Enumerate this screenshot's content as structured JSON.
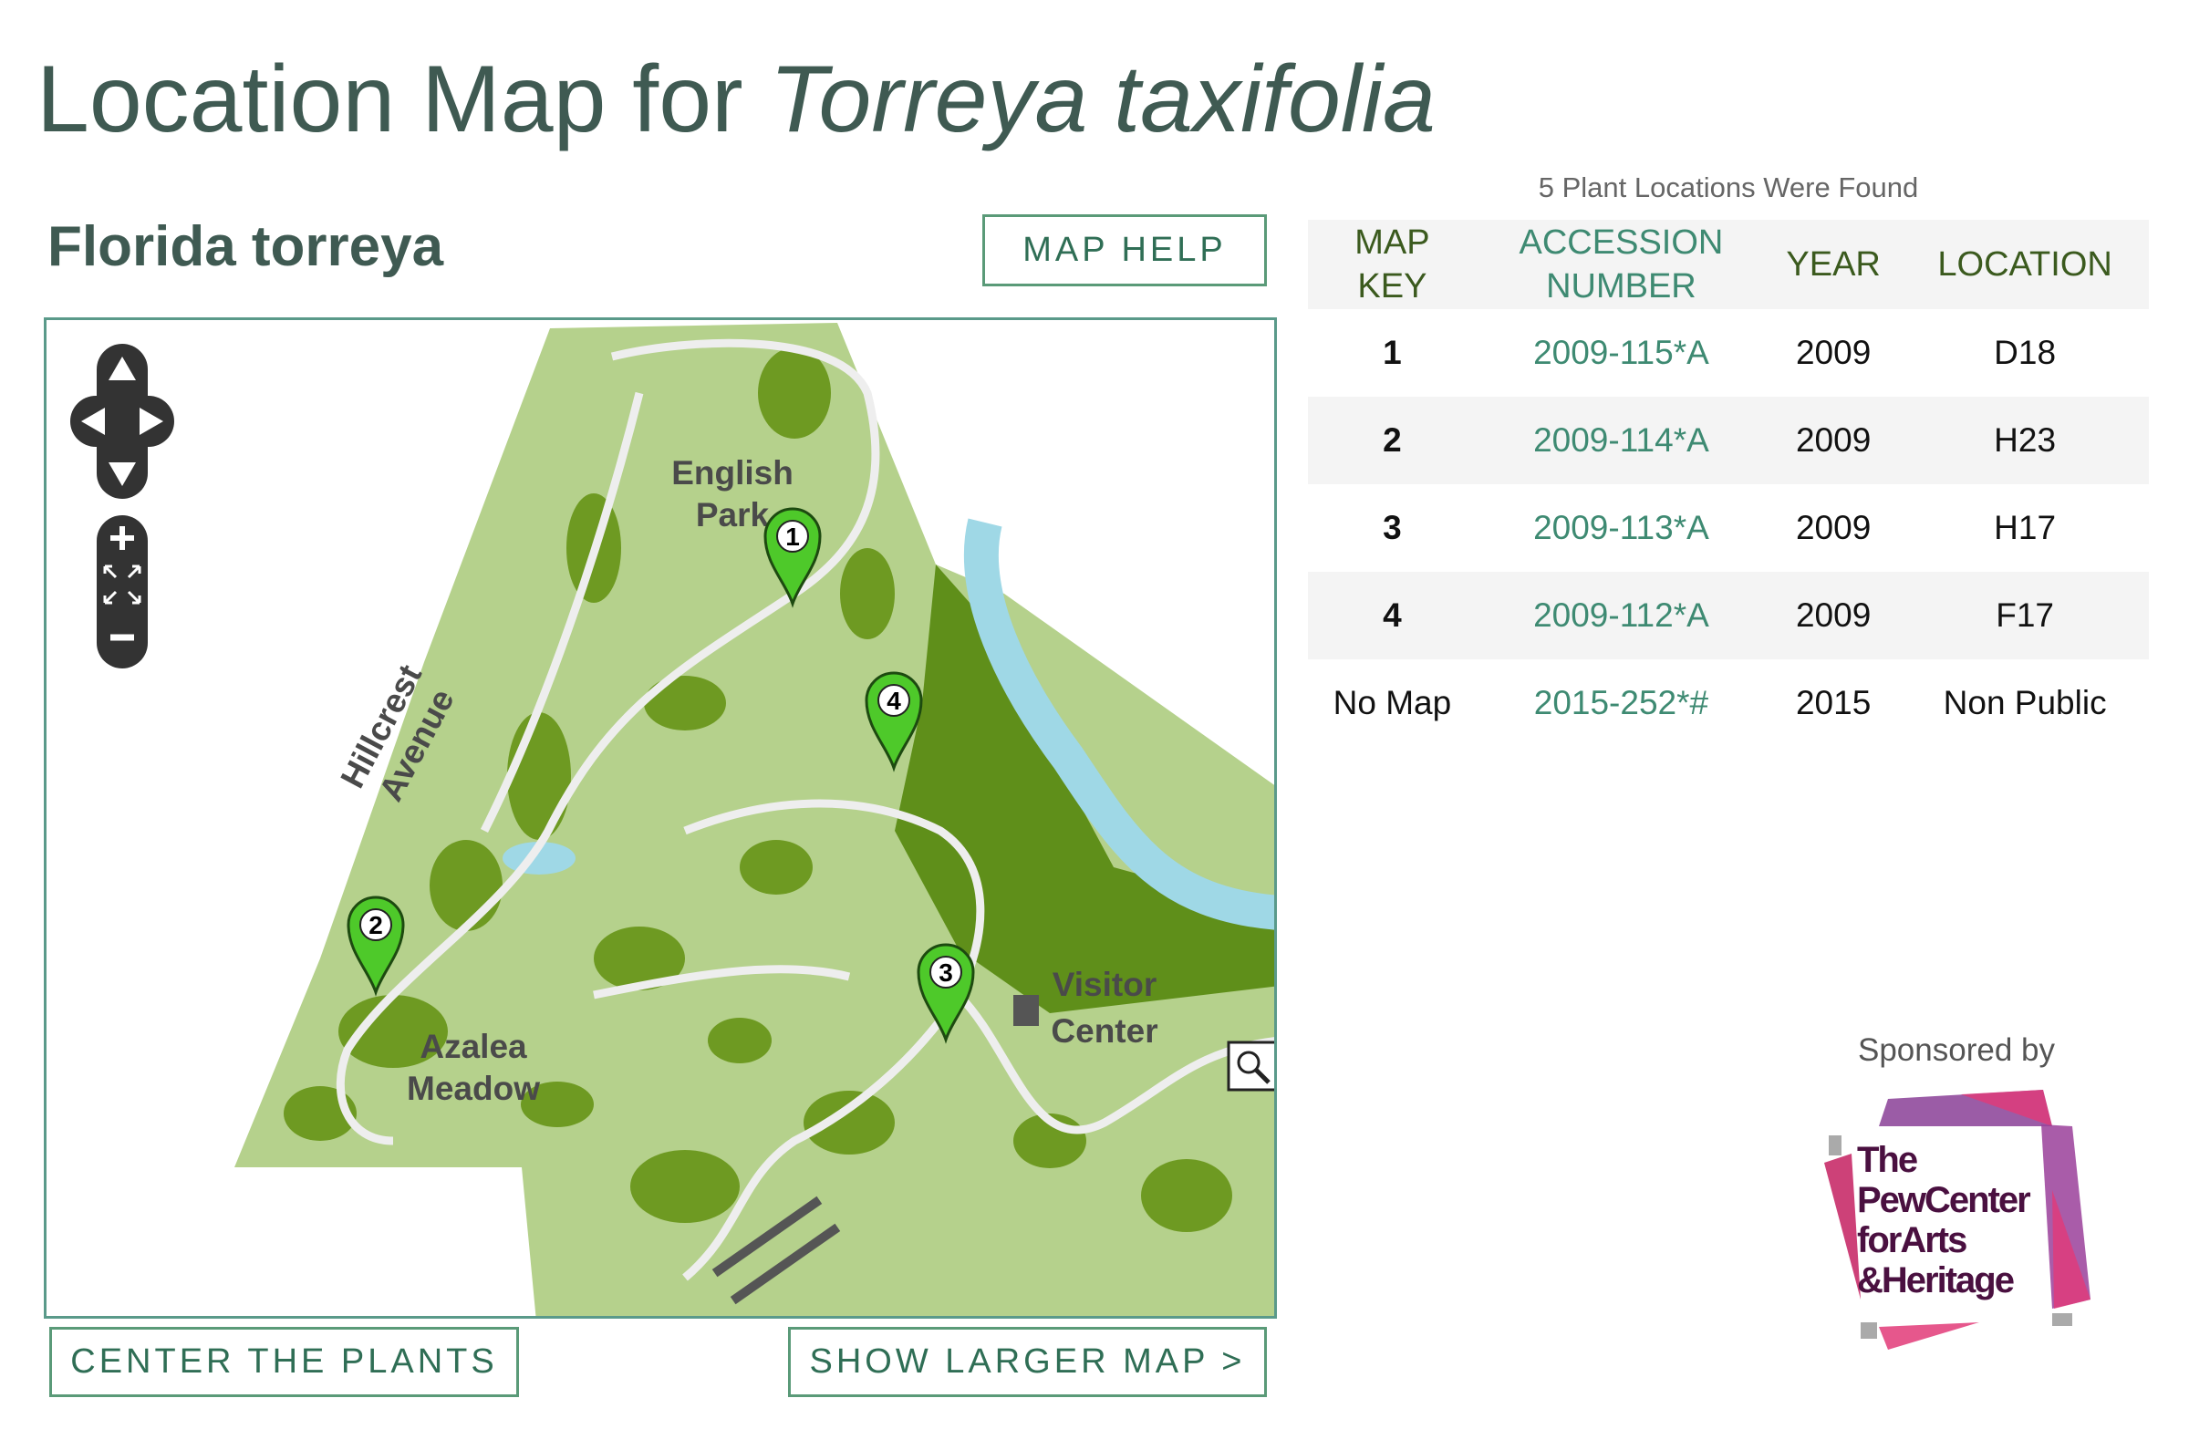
{
  "page": {
    "title_prefix": "Location Map for ",
    "title_species": "Torreya taxifolia",
    "common_name": "Florida torreya"
  },
  "buttons": {
    "map_help": "MAP HELP",
    "center_plants": "CENTER THE PLANTS",
    "show_larger": "SHOW LARGER MAP >"
  },
  "map": {
    "labels": {
      "english": "English",
      "park": "Park",
      "visitor": "Visitor",
      "center": "Center",
      "azalea": "Azalea",
      "meadow": "Meadow",
      "hillcrest": "Hillcrest",
      "avenue": "Avenue"
    },
    "markers": [
      "1",
      "2",
      "3",
      "4"
    ],
    "controls": [
      "pan-up",
      "pan-left",
      "pan-right",
      "pan-down",
      "zoom-in",
      "zoom-extent",
      "zoom-out",
      "magnifier"
    ],
    "colors": {
      "park": "#b5d18c",
      "forest": "#5f8f1a",
      "water": "#9fd8e6",
      "marker": "#4ec92a"
    }
  },
  "results": {
    "count_text": "5 Plant Locations Were Found",
    "headers": {
      "key1": "MAP",
      "key2": "KEY",
      "acc1": "ACCESSION",
      "acc2": "NUMBER",
      "year": "YEAR",
      "location": "LOCATION"
    },
    "rows": [
      {
        "key": "1",
        "accession": "2009-115*A",
        "year": "2009",
        "location": "D18"
      },
      {
        "key": "2",
        "accession": "2009-114*A",
        "year": "2009",
        "location": "H23"
      },
      {
        "key": "3",
        "accession": "2009-113*A",
        "year": "2009",
        "location": "H17"
      },
      {
        "key": "4",
        "accession": "2009-112*A",
        "year": "2009",
        "location": "F17"
      },
      {
        "key": "No Map",
        "accession": "2015-252*#",
        "year": "2015",
        "location": "Non Public"
      }
    ]
  },
  "sponsor": {
    "label": "Sponsored by",
    "logo_text": "The Pew Center for Arts & Heritage"
  }
}
